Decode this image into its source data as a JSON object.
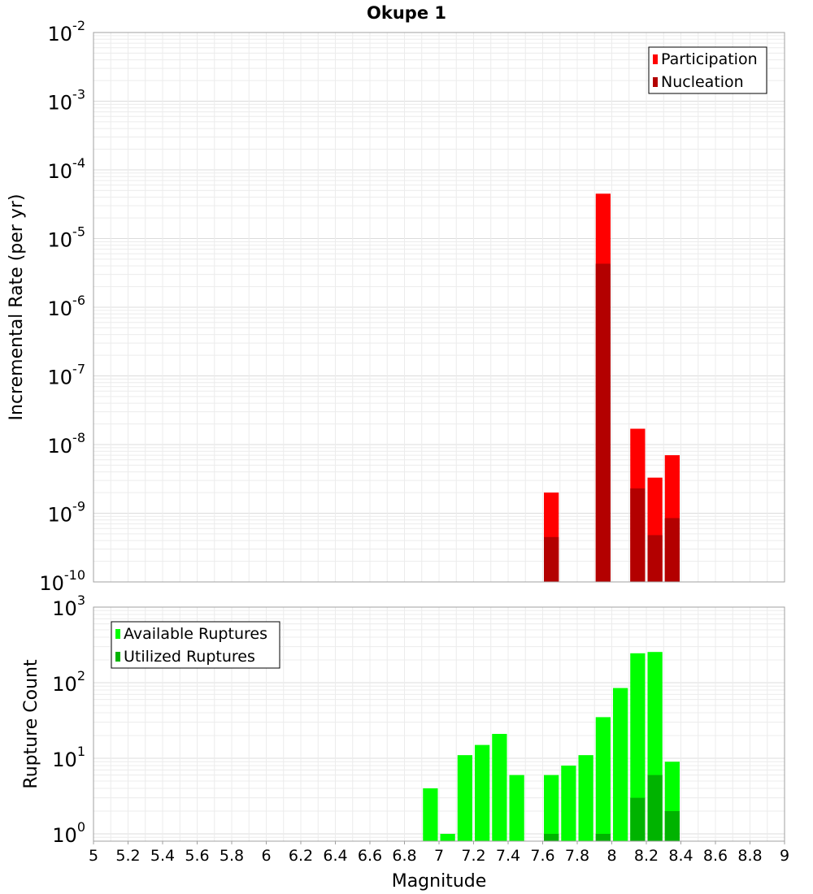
{
  "chart_data": [
    {
      "type": "bar",
      "title": "Okupe 1",
      "ylabel": "Incremental Rate (per yr)",
      "xlabel": "",
      "scale": "log",
      "ylim": [
        1e-10,
        0.01
      ],
      "xlim": [
        5,
        9
      ],
      "y_ticks": [
        {
          "base": "10",
          "exp": "-10"
        },
        {
          "base": "10",
          "exp": "-9"
        },
        {
          "base": "10",
          "exp": "-8"
        },
        {
          "base": "10",
          "exp": "-7"
        },
        {
          "base": "10",
          "exp": "-6"
        },
        {
          "base": "10",
          "exp": "-5"
        },
        {
          "base": "10",
          "exp": "-4"
        },
        {
          "base": "10",
          "exp": "-3"
        },
        {
          "base": "10",
          "exp": "-2"
        }
      ],
      "grid": true,
      "legend_position": "top-right",
      "series": [
        {
          "name": "Participation",
          "color": "#ff0000",
          "x": [
            7.65,
            7.95,
            8.15,
            8.25,
            8.35
          ],
          "values": [
            2e-09,
            4.5e-05,
            1.7e-08,
            3.3e-09,
            7e-09
          ]
        },
        {
          "name": "Nucleation",
          "color": "#b30000",
          "x": [
            7.65,
            7.95,
            8.15,
            8.25,
            8.35
          ],
          "values": [
            4.5e-10,
            4.3e-06,
            2.3e-09,
            4.8e-10,
            8.5e-10
          ]
        }
      ]
    },
    {
      "type": "bar",
      "title": "",
      "ylabel": "Rupture Count",
      "xlabel": "Magnitude",
      "scale": "log",
      "ylim": [
        0.8,
        1000
      ],
      "xlim": [
        5,
        9
      ],
      "y_ticks": [
        {
          "base": "10",
          "exp": "0"
        },
        {
          "base": "10",
          "exp": "1"
        },
        {
          "base": "10",
          "exp": "2"
        },
        {
          "base": "10",
          "exp": "3"
        }
      ],
      "x_ticks": [
        "5",
        "5.2",
        "5.4",
        "5.6",
        "5.8",
        "6",
        "6.2",
        "6.4",
        "6.6",
        "6.8",
        "7",
        "7.2",
        "7.4",
        "7.6",
        "7.8",
        "8",
        "8.2",
        "8.4",
        "8.6",
        "8.8",
        "9"
      ],
      "grid": true,
      "legend_position": "top-left",
      "series": [
        {
          "name": "Available Ruptures",
          "color": "#00ff00",
          "x": [
            6.95,
            7.05,
            7.15,
            7.25,
            7.35,
            7.45,
            7.65,
            7.75,
            7.85,
            7.95,
            8.05,
            8.15,
            8.25,
            8.35
          ],
          "values": [
            4,
            1,
            11,
            15,
            21,
            6,
            6,
            8,
            11,
            35,
            85,
            245,
            255,
            9
          ]
        },
        {
          "name": "Utilized Ruptures",
          "color": "#00b300",
          "x": [
            7.65,
            7.95,
            8.15,
            8.25,
            8.35
          ],
          "values": [
            1,
            1,
            3,
            6,
            2
          ]
        }
      ]
    }
  ]
}
